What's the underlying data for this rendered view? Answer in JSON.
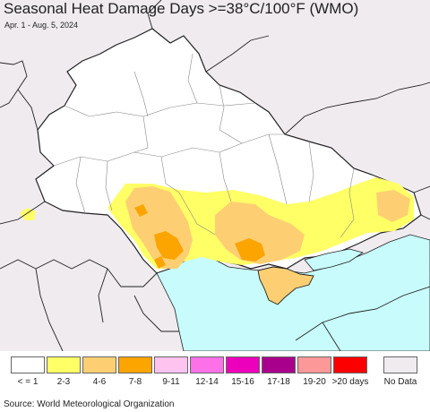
{
  "title": "Seasonal Heat Damage Days >=38°C/100°F (WMO)",
  "subtitle": "Apr. 1 - Aug. 5, 2024",
  "source": "Source: World Meteorological Organization",
  "colors": {
    "land": "#ffffff",
    "outside": "#efebef",
    "sea": "#c8fcfc",
    "border": "#222222",
    "admin": "#888888"
  },
  "legend": [
    {
      "label": "< = 1",
      "color": "#ffffff"
    },
    {
      "label": "2-3",
      "color": "#ffff66"
    },
    {
      "label": "4-6",
      "color": "#fdcf72"
    },
    {
      "label": "7-8",
      "color": "#fca400"
    },
    {
      "label": "9-11",
      "color": "#ffc3f0"
    },
    {
      "label": "12-14",
      "color": "#fc70e8"
    },
    {
      "label": "15-16",
      "color": "#ec00bc"
    },
    {
      "label": "17-18",
      "color": "#a8008c"
    },
    {
      "label": "19-20",
      "color": "#fc9898"
    },
    {
      "label": ">20 days",
      "color": "#fc0000"
    },
    {
      "label": "No Data",
      "color": "#efebef"
    }
  ]
}
